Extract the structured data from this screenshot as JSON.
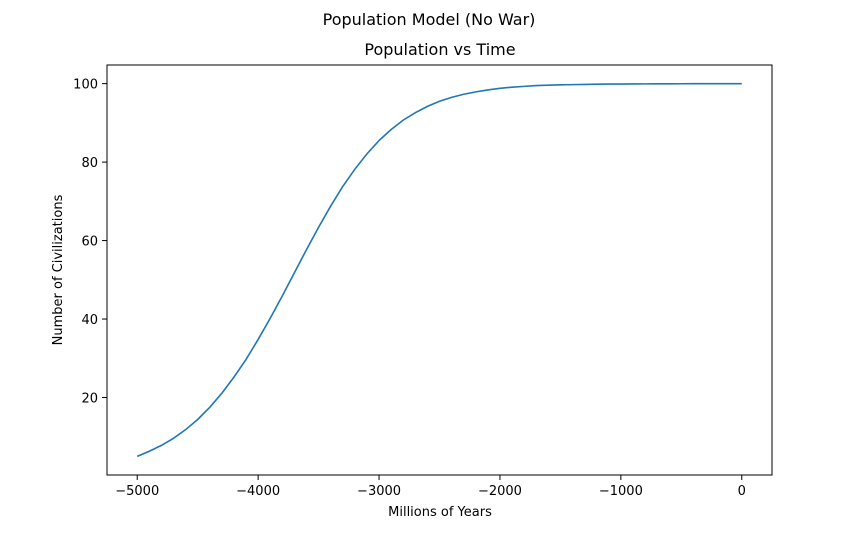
{
  "figure": {
    "suptitle": "Population Model (No War)"
  },
  "chart_data": {
    "type": "line",
    "title": "Population vs Time",
    "xlabel": "Millions of Years",
    "ylabel": "Number of Civilizations",
    "xlim": [
      -5250,
      250
    ],
    "ylim": [
      0.25,
      104.75
    ],
    "xticks": [
      -5000,
      -4000,
      -3000,
      -2000,
      -1000,
      0
    ],
    "yticks": [
      20,
      40,
      60,
      80,
      100
    ],
    "grid": false,
    "legend": "none",
    "series": [
      {
        "color": "#1f77b4",
        "x": [
          -5000,
          -4900,
          -4800,
          -4700,
          -4600,
          -4500,
          -4400,
          -4300,
          -4200,
          -4100,
          -4000,
          -3900,
          -3800,
          -3700,
          -3600,
          -3500,
          -3400,
          -3300,
          -3200,
          -3100,
          -3000,
          -2900,
          -2800,
          -2700,
          -2600,
          -2500,
          -2400,
          -2300,
          -2200,
          -2100,
          -2000,
          -1900,
          -1800,
          -1700,
          -1600,
          -1500,
          -1400,
          -1300,
          -1200,
          -1100,
          -1000,
          -900,
          -800,
          -700,
          -600,
          -500,
          -400,
          -300,
          -200,
          -100,
          0
        ],
        "y": [
          5.0,
          6.3,
          7.8,
          9.6,
          11.8,
          14.4,
          17.5,
          21.1,
          25.2,
          29.7,
          34.8,
          40.2,
          45.9,
          51.8,
          57.7,
          63.4,
          68.8,
          73.8,
          78.2,
          82.1,
          85.5,
          88.3,
          90.7,
          92.6,
          94.2,
          95.5,
          96.5,
          97.3,
          97.9,
          98.4,
          98.8,
          99.1,
          99.3,
          99.5,
          99.6,
          99.7,
          99.75,
          99.8,
          99.85,
          99.88,
          99.9,
          99.92,
          99.94,
          99.95,
          99.96,
          99.97,
          99.98,
          99.98,
          99.99,
          99.99,
          100.0
        ]
      }
    ]
  }
}
